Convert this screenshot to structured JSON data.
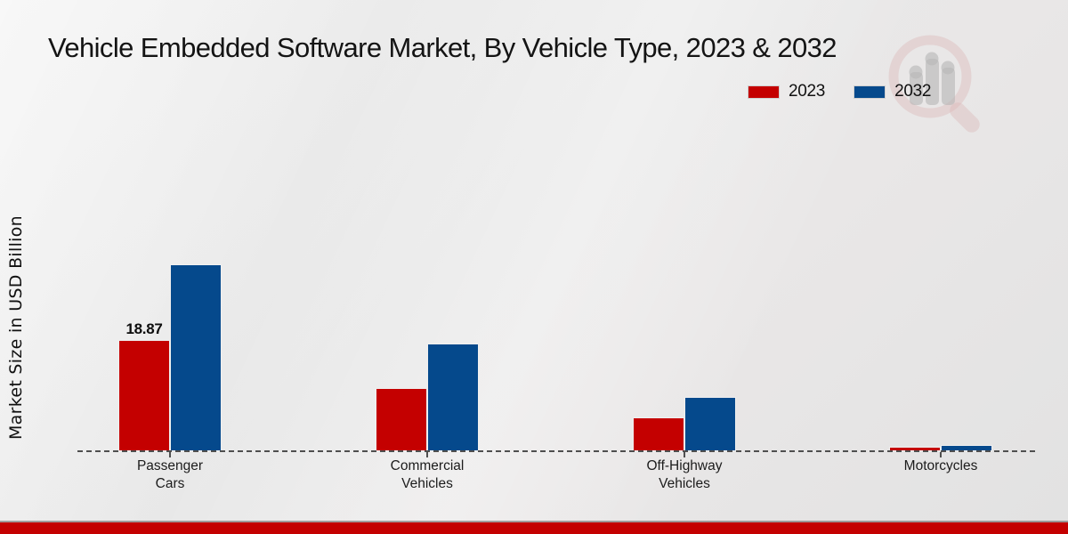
{
  "title": "Vehicle Embedded Software Market, By Vehicle Type, 2023 & 2032",
  "colors": {
    "series_2023": "#c40000",
    "series_2032": "#05498c",
    "accent_strip": "#c40000",
    "background": "#e8e8e8",
    "baseline": "#4f4f4f"
  },
  "legend": {
    "position": "top-right",
    "items": [
      {
        "label": "2023",
        "color": "#c40000"
      },
      {
        "label": "2032",
        "color": "#05498c"
      }
    ]
  },
  "chart_data": {
    "type": "bar",
    "title": "Vehicle Embedded Software Market, By Vehicle Type, 2023 & 2032",
    "ylabel": "Market Size in USD Billion",
    "xlabel": "",
    "categories": [
      "Passenger Cars",
      "Commercial Vehicles",
      "Off-Highway Vehicles",
      "Motorcycles"
    ],
    "category_label_lines": [
      [
        "Passenger",
        "Cars"
      ],
      [
        "Commercial",
        "Vehicles"
      ],
      [
        "Off-Highway",
        "Vehicles"
      ],
      [
        "Motorcycles"
      ]
    ],
    "series": [
      {
        "name": "2023",
        "color": "#c40000",
        "values": [
          18.87,
          10.7,
          5.8,
          0.7
        ],
        "value_labels": [
          "18.87",
          null,
          null,
          null
        ]
      },
      {
        "name": "2032",
        "color": "#05498c",
        "values": [
          31.7,
          18.3,
          9.2,
          1.1
        ],
        "value_labels": [
          null,
          null,
          null,
          null
        ]
      }
    ],
    "ylim": [
      0,
      63
    ],
    "y_axis_ticks_visible": false,
    "grid": false,
    "baseline_style": "dashed",
    "legend_position": "top-right"
  },
  "watermark": {
    "name": "market-research-future-logo"
  }
}
